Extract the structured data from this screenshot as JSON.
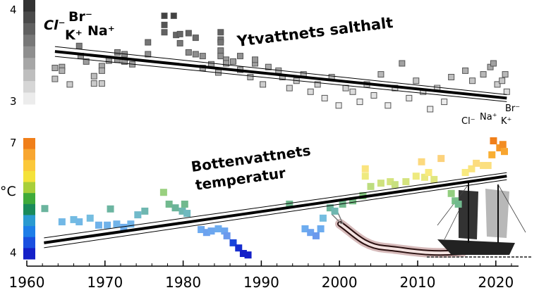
{
  "chart_data": [
    {
      "type": "scatter",
      "title": "Ytvattnets salthalt",
      "ion_labels_left": [
        "Cl⁻",
        "Br⁻",
        "K⁺",
        "Na⁺"
      ],
      "ion_labels_right": [
        "Br⁻",
        "Cl⁻",
        "Na⁺",
        "K⁺"
      ],
      "colorbar": {
        "ticks": [
          "4",
          "3"
        ],
        "range": [
          3,
          4
        ],
        "colors": [
          "#333333",
          "#4a4a4a",
          "#606060",
          "#777777",
          "#8e8e8e",
          "#a6a6a6",
          "#bebebe",
          "#d6d6d6",
          "#ececec"
        ]
      },
      "ylim": [
        2.85,
        4.0
      ],
      "trend": {
        "start": [
          1963.6,
          3.53
        ],
        "end": [
          2021.4,
          3.02
        ]
      },
      "points": [
        [
          1963.6,
          3.35
        ],
        [
          1964.5,
          3.36
        ],
        [
          1964.5,
          3.32
        ],
        [
          1963.6,
          3.23
        ],
        [
          1965.5,
          3.17
        ],
        [
          1968.6,
          3.18
        ],
        [
          1969.6,
          3.18
        ],
        [
          1968.6,
          3.26
        ],
        [
          1969.6,
          3.37
        ],
        [
          1969.6,
          3.32
        ],
        [
          1966.7,
          3.59
        ],
        [
          1966.9,
          3.48
        ],
        [
          1967.6,
          3.42
        ],
        [
          1970.5,
          3.43
        ],
        [
          1971.6,
          3.52
        ],
        [
          1971.6,
          3.44
        ],
        [
          1972.5,
          3.5
        ],
        [
          1972.5,
          3.42
        ],
        [
          1973.5,
          3.39
        ],
        [
          1975.5,
          3.63
        ],
        [
          1975.5,
          3.5
        ],
        [
          1977.6,
          3.92
        ],
        [
          1977.6,
          3.82
        ],
        [
          1977.6,
          3.74
        ],
        [
          1978.8,
          3.92
        ],
        [
          1979.1,
          3.71
        ],
        [
          1979.6,
          3.72
        ],
        [
          1979.6,
          3.62
        ],
        [
          1980.7,
          3.73
        ],
        [
          1980.7,
          3.52
        ],
        [
          1981.6,
          3.68
        ],
        [
          1981.6,
          3.5
        ],
        [
          1982.5,
          3.48
        ],
        [
          1982.5,
          3.35
        ],
        [
          1983.6,
          3.39
        ],
        [
          1984.5,
          3.3
        ],
        [
          1984.8,
          3.74
        ],
        [
          1984.8,
          3.66
        ],
        [
          1984.8,
          3.63
        ],
        [
          1984.8,
          3.54
        ],
        [
          1984.8,
          3.48
        ],
        [
          1985.5,
          3.44
        ],
        [
          1985.5,
          3.4
        ],
        [
          1986.4,
          3.42
        ],
        [
          1987.3,
          3.48
        ],
        [
          1987.3,
          3.33
        ],
        [
          1988.6,
          3.25
        ],
        [
          1989.2,
          3.4
        ],
        [
          1989.2,
          3.44
        ],
        [
          1990.2,
          3.17
        ],
        [
          1990.9,
          3.36
        ],
        [
          1992.2,
          3.32
        ],
        [
          1992.7,
          3.25
        ],
        [
          1993.6,
          3.13
        ],
        [
          1994.5,
          3.21
        ],
        [
          1995.4,
          3.28
        ],
        [
          1996.3,
          3.09
        ],
        [
          1997.2,
          3.17
        ],
        [
          1998.1,
          3.02
        ],
        [
          1999.0,
          3.25
        ],
        [
          1999.9,
          2.94
        ],
        [
          2000.8,
          3.13
        ],
        [
          2001.7,
          3.09
        ],
        [
          2002.6,
          2.98
        ],
        [
          2003.5,
          3.17
        ],
        [
          2004.4,
          3.05
        ],
        [
          2005.3,
          3.28
        ],
        [
          2006.2,
          2.94
        ],
        [
          2007.1,
          3.13
        ],
        [
          2008.0,
          3.4
        ],
        [
          2008.9,
          3.02
        ],
        [
          2009.8,
          3.21
        ],
        [
          2010.7,
          3.09
        ],
        [
          2011.6,
          2.9
        ],
        [
          2012.5,
          3.13
        ],
        [
          2013.4,
          2.98
        ],
        [
          2014.3,
          3.25
        ],
        [
          2016.1,
          3.32
        ],
        [
          2017.0,
          3.21
        ],
        [
          2018.4,
          3.28
        ],
        [
          2019.3,
          3.36
        ],
        [
          2019.7,
          3.4
        ],
        [
          2020.2,
          3.17
        ],
        [
          2020.8,
          3.21
        ],
        [
          2021.2,
          3.28
        ],
        [
          2021.4,
          3.09
        ]
      ]
    },
    {
      "type": "scatter",
      "title": "Bottenvattnets temperatur",
      "title_lines": [
        "Bottenvattnets",
        "temperatur"
      ],
      "colorbar": {
        "unit": "°C",
        "ticks": [
          "7",
          "4"
        ],
        "range": [
          4,
          7
        ],
        "colors": [
          "#f07f1a",
          "#f8a630",
          "#fbc83a",
          "#f4e23a",
          "#a8cf3a",
          "#3faa3a",
          "#1a8a5a",
          "#2a9ad0",
          "#1e7ee8",
          "#1a50e0",
          "#1420c8"
        ]
      },
      "ylim": [
        3.8,
        7.1
      ],
      "trend": {
        "start": [
          1962.2,
          4.23
        ],
        "end": [
          2021.4,
          6.04
        ]
      },
      "points": [
        [
          1962.3,
          5.16
        ],
        [
          1964.5,
          4.8
        ],
        [
          1966.0,
          4.86
        ],
        [
          1966.7,
          4.8
        ],
        [
          1968.1,
          4.9
        ],
        [
          1969.2,
          4.71
        ],
        [
          1970.3,
          4.71
        ],
        [
          1970.7,
          5.15
        ],
        [
          1971.5,
          4.74
        ],
        [
          1972.4,
          4.65
        ],
        [
          1973.3,
          4.74
        ],
        [
          1974.2,
          4.99
        ],
        [
          1975.1,
          5.09
        ],
        [
          1977.5,
          5.6
        ],
        [
          1978.2,
          5.28
        ],
        [
          1979.0,
          5.18
        ],
        [
          1980.2,
          5.28
        ],
        [
          1979.9,
          5.09
        ],
        [
          1980.5,
          5.03
        ],
        [
          1982.3,
          4.59
        ],
        [
          1983.0,
          4.51
        ],
        [
          1983.6,
          4.55
        ],
        [
          1984.5,
          4.61
        ],
        [
          1985.3,
          4.55
        ],
        [
          1985.6,
          4.42
        ],
        [
          1986.4,
          4.23
        ],
        [
          1987.1,
          4.09
        ],
        [
          1987.7,
          3.94
        ],
        [
          1988.3,
          3.9
        ],
        [
          1993.6,
          5.28
        ],
        [
          1995.6,
          4.61
        ],
        [
          1996.3,
          4.51
        ],
        [
          1997.0,
          4.42
        ],
        [
          1997.6,
          4.61
        ],
        [
          1997.9,
          4.9
        ],
        [
          1998.8,
          5.18
        ],
        [
          1999.4,
          5.09
        ],
        [
          2000.4,
          5.28
        ],
        [
          2001.7,
          5.37
        ],
        [
          2003.0,
          5.51
        ],
        [
          2003.3,
          6.24
        ],
        [
          2003.3,
          6.04
        ],
        [
          2004.0,
          5.76
        ],
        [
          2005.3,
          5.85
        ],
        [
          2006.5,
          5.89
        ],
        [
          2007.1,
          5.81
        ],
        [
          2008.5,
          5.89
        ],
        [
          2009.8,
          6.04
        ],
        [
          2010.5,
          6.43
        ],
        [
          2010.9,
          6.01
        ],
        [
          2011.4,
          6.14
        ],
        [
          2012.1,
          5.95
        ],
        [
          2013.0,
          6.52
        ],
        [
          2014.3,
          5.57
        ],
        [
          2014.8,
          5.37
        ],
        [
          2015.2,
          5.28
        ],
        [
          2016.1,
          6.14
        ],
        [
          2016.9,
          6.24
        ],
        [
          2017.5,
          6.39
        ],
        [
          2018.4,
          6.33
        ],
        [
          2019.0,
          6.33
        ],
        [
          2019.5,
          6.62
        ],
        [
          2019.7,
          7.0
        ],
        [
          2020.5,
          6.81
        ],
        [
          2020.9,
          6.9
        ],
        [
          2021.1,
          6.71
        ]
      ]
    }
  ],
  "x_axis": {
    "range": [
      1960,
      2023
    ],
    "ticks": [
      "1960",
      "1970",
      "1980",
      "1990",
      "2000",
      "2010",
      "2020"
    ],
    "tick_values": [
      1960,
      1970,
      1980,
      1990,
      2000,
      2010,
      2020
    ]
  },
  "colors": {
    "trend": "#000000",
    "point_stroke": "#555555"
  },
  "illustrations": [
    "eel-illustration",
    "sailing-ship-illustration"
  ]
}
